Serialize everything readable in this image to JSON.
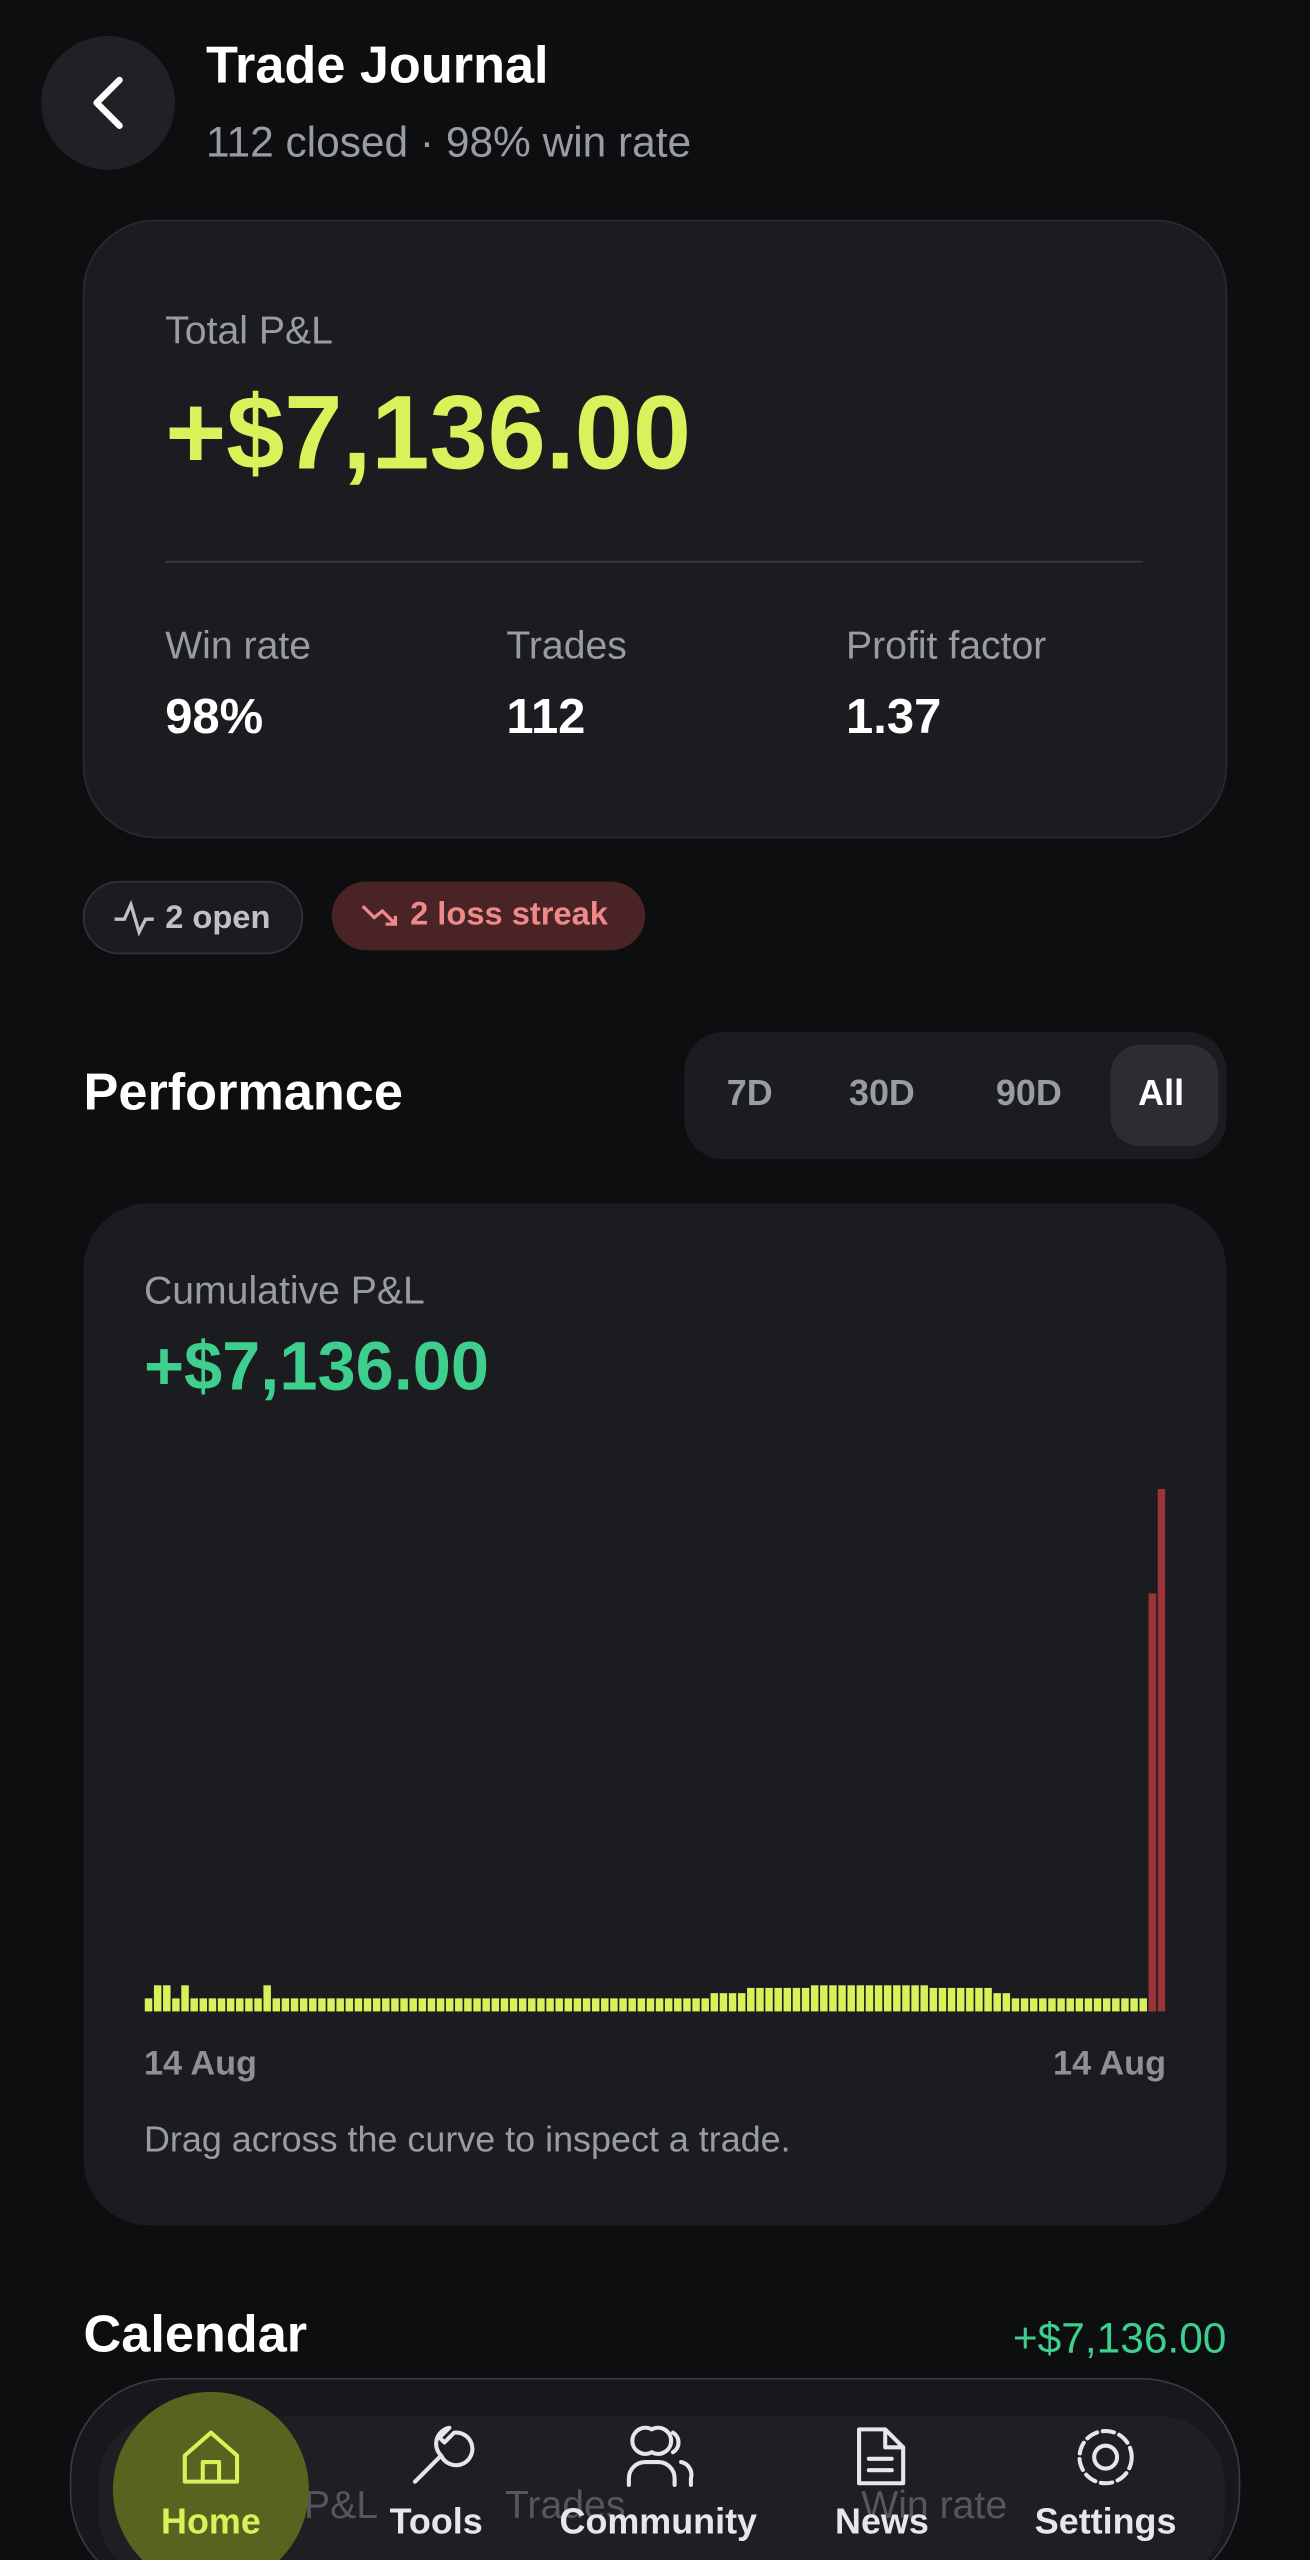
{
  "header": {
    "title": "Trade Journal",
    "subtitle": "112 closed · 98% win rate"
  },
  "summary": {
    "label": "Total P&L",
    "value": "+$7,136.00",
    "stats": [
      {
        "label": "Win rate",
        "value": "98%"
      },
      {
        "label": "Trades",
        "value": "112"
      },
      {
        "label": "Profit factor",
        "value": "1.37"
      }
    ]
  },
  "chips": [
    "2 open",
    "2 loss streak"
  ],
  "performance": {
    "title": "Performance",
    "ranges": [
      "7D",
      "30D",
      "90D",
      "All"
    ],
    "selected": "All"
  },
  "chart_data": {
    "type": "bar",
    "title": "Cumulative P&L",
    "subtitle": "+$7,136.00",
    "values": [
      2.5,
      5,
      5,
      2.5,
      5,
      2.5,
      2.5,
      2.5,
      2.5,
      2.5,
      2.5,
      2.5,
      2.5,
      5,
      2.5,
      2.5,
      2.5,
      2.5,
      2.5,
      2.5,
      2.5,
      2.5,
      2.5,
      2.5,
      2.5,
      2.5,
      2.5,
      2.5,
      2.5,
      2.5,
      2.5,
      2.5,
      2.5,
      2.5,
      2.5,
      2.5,
      2.5,
      2.5,
      2.5,
      2.5,
      2.5,
      2.5,
      2.5,
      2.5,
      2.5,
      2.5,
      2.5,
      2.5,
      2.5,
      2.5,
      2.5,
      2.5,
      2.5,
      2.5,
      2.5,
      2.5,
      2.5,
      2.5,
      2.5,
      2.5,
      2.5,
      2.5,
      3.5,
      3.5,
      3.5,
      3.5,
      4.5,
      4.5,
      4.5,
      4.5,
      4.5,
      4.5,
      4.5,
      5,
      5,
      5,
      5,
      5,
      5,
      5,
      5,
      5,
      5,
      5,
      5,
      5,
      4.5,
      4.5,
      4.5,
      4.5,
      4.5,
      4.5,
      4.5,
      3.5,
      3.5,
      2.5,
      2.5,
      2.5,
      2.5,
      2.5,
      2.5,
      2.5,
      2.5,
      2.5,
      2.5,
      2.5,
      2.5,
      2.5,
      2.5,
      2.5
    ],
    "color": "#d7f25a",
    "loss_values": [
      80,
      100
    ],
    "loss_color": "#9b3438",
    "ylim": [
      0,
      100
    ],
    "x_labels": [
      "14 Aug",
      "14 Aug"
    ],
    "note": "Drag across the curve to inspect a trade."
  },
  "calendar": {
    "title": "Calendar",
    "total": "+$7,136.00",
    "columns": [
      "P&L",
      "Trades",
      "Win rate"
    ]
  },
  "nav": [
    "Home",
    "Tools",
    "Community",
    "News",
    "Settings"
  ]
}
